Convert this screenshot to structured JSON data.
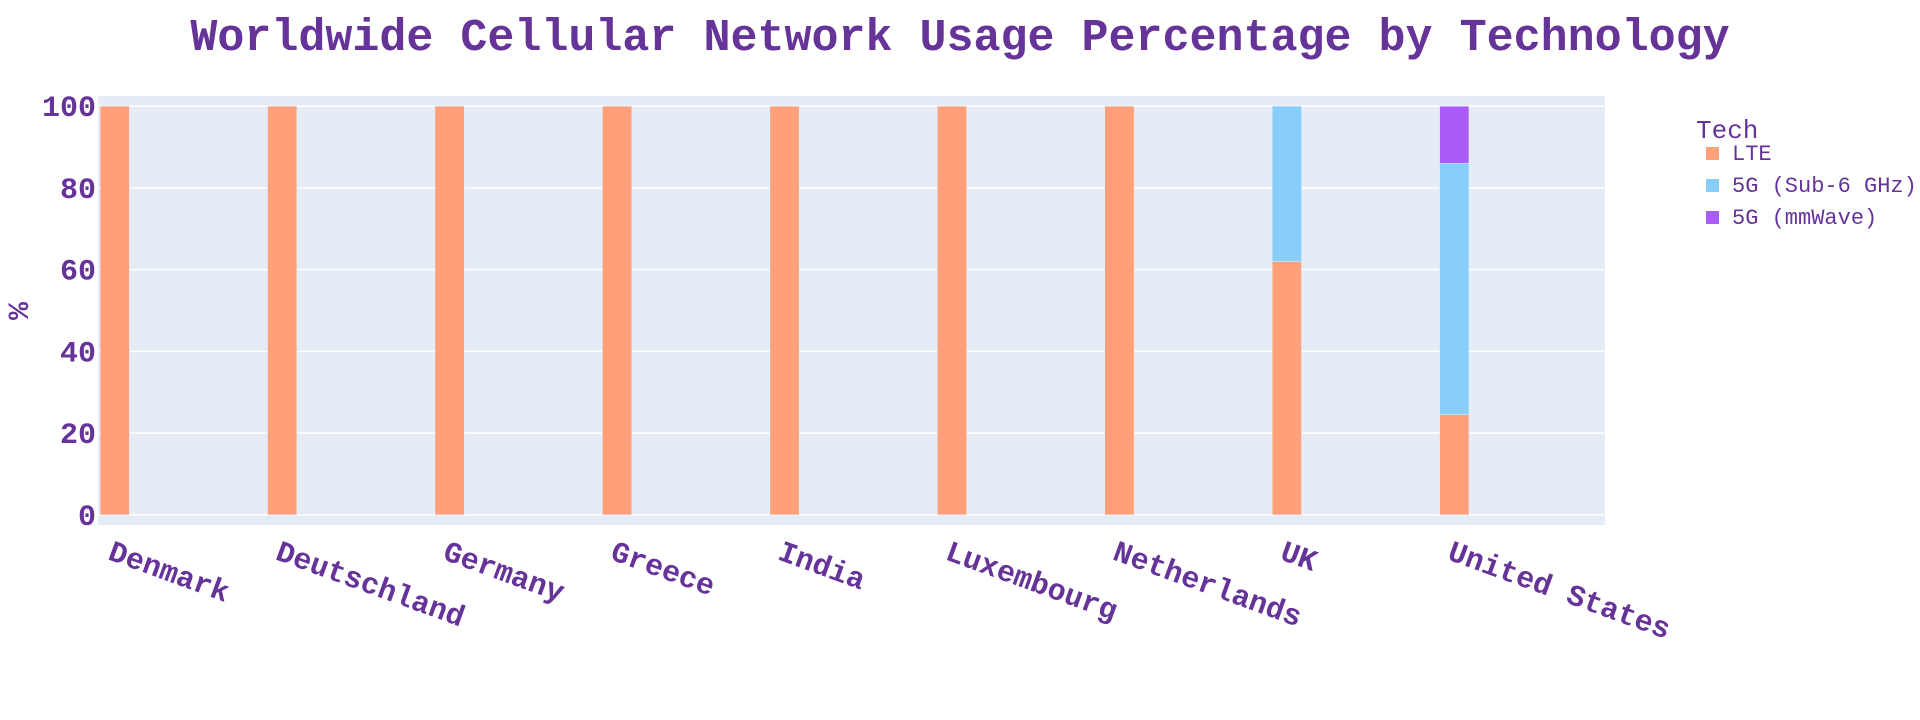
{
  "chart_data": {
    "type": "bar",
    "barmode": "stack",
    "title": "Worldwide Cellular Network Usage Percentage by Technology",
    "xlabel": "",
    "ylabel": "%",
    "ylim": [
      -2.5,
      102.5
    ],
    "yticks": [
      "0",
      "20",
      "40",
      "60",
      "80",
      "100"
    ],
    "grid": true,
    "legend_placement": "top-right",
    "legend_title": "Tech",
    "categories": [
      "Denmark",
      "Deutschland",
      "Germany",
      "Greece",
      "India",
      "Luxembourg",
      "Netherlands",
      "UK",
      "United States"
    ],
    "series": [
      {
        "name": "LTE",
        "color": "#FFA07A",
        "values": [
          100,
          100,
          100,
          100,
          100,
          100,
          100,
          62,
          24.5
        ]
      },
      {
        "name": "5G (Sub-6 GHz)",
        "color": "#87CEFA",
        "values": [
          0,
          0,
          0,
          0,
          0,
          0,
          0,
          38,
          61.5
        ]
      },
      {
        "name": "5G (mmWave)",
        "color": "#A95CFA",
        "values": [
          0,
          0,
          0,
          0,
          0,
          0,
          0,
          0,
          14
        ]
      }
    ],
    "colors": {
      "text": "#663399",
      "plot_background": "#E5ECF6",
      "gridline": "#FFFFFF"
    }
  }
}
